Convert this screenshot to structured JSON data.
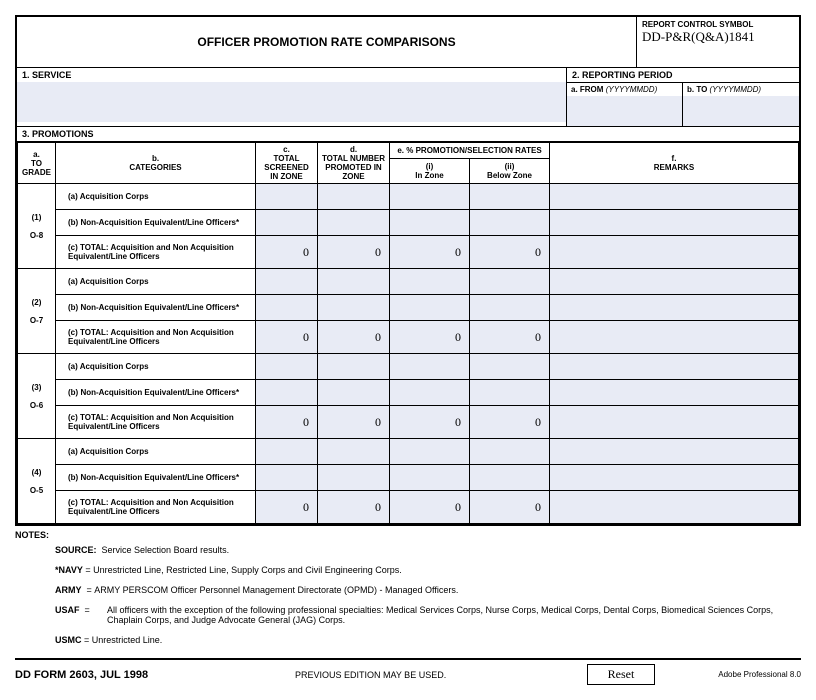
{
  "header": {
    "title": "OFFICER PROMOTION RATE COMPARISONS",
    "report_symbol_label": "REPORT CONTROL SYMBOL",
    "report_symbol_value": "DD-P&R(Q&A)1841"
  },
  "section1": {
    "label": "1.  SERVICE"
  },
  "section2": {
    "label": "2.  REPORTING PERIOD",
    "from_label": "a.  FROM",
    "from_hint": "(YYYYMMDD)",
    "to_label": "b.  TO",
    "to_hint": "(YYYYMMDD)"
  },
  "section3": {
    "label": "3.  PROMOTIONS"
  },
  "columns": {
    "a": "a.\nTO\nGRADE",
    "b": "b.\nCATEGORIES",
    "c": "c.\nTOTAL\nSCREENED\nIN ZONE",
    "d": "d.\nTOTAL NUMBER\nPROMOTED IN\nZONE",
    "e": "e.  % PROMOTION/SELECTION RATES",
    "e_i": "(i)\nIn Zone",
    "e_ii": "(ii)\nBelow Zone",
    "f": "f.\nREMARKS"
  },
  "categories": {
    "a": "(a) Acquisition Corps",
    "b": "(b) Non-Acquisition Equivalent/Line Officers*",
    "c": "(c) TOTAL: Acquisition and Non Acquisition\n      Equivalent/Line Officers"
  },
  "grades": [
    {
      "num": "(1)",
      "label": "O-8",
      "total": [
        "0",
        "0",
        "0",
        "0"
      ]
    },
    {
      "num": "(2)",
      "label": "O-7",
      "total": [
        "0",
        "0",
        "0",
        "0"
      ]
    },
    {
      "num": "(3)",
      "label": "O-6",
      "total": [
        "0",
        "0",
        "0",
        "0"
      ]
    },
    {
      "num": "(4)",
      "label": "O-5",
      "total": [
        "0",
        "0",
        "0",
        "0"
      ]
    }
  ],
  "notes": {
    "header": "NOTES:",
    "source": "Service Selection Board results.",
    "navy": "Unrestricted Line, Restricted Line, Supply Corps and Civil Engineering Corps.",
    "army": "ARMY PERSCOM Officer Personnel Management Directorate (OPMD) - Managed Officers.",
    "usaf": "All officers with the exception of the following professional specialties: Medical Services Corps, Nurse Corps, Medical Corps, Dental Corps, Biomedical Sciences Corps, Chaplain Corps, and Judge Advocate General (JAG) Corps.",
    "usmc": "Unrestricted Line."
  },
  "footer": {
    "form_id": "DD FORM 2603, JUL 1998",
    "prev_edition": "PREVIOUS EDITION MAY BE USED.",
    "reset": "Reset",
    "adobe": "Adobe Professional 8.0"
  },
  "colors": {
    "input_bg": "#e8ebf5",
    "border": "#000000",
    "page_bg": "#ffffff"
  }
}
